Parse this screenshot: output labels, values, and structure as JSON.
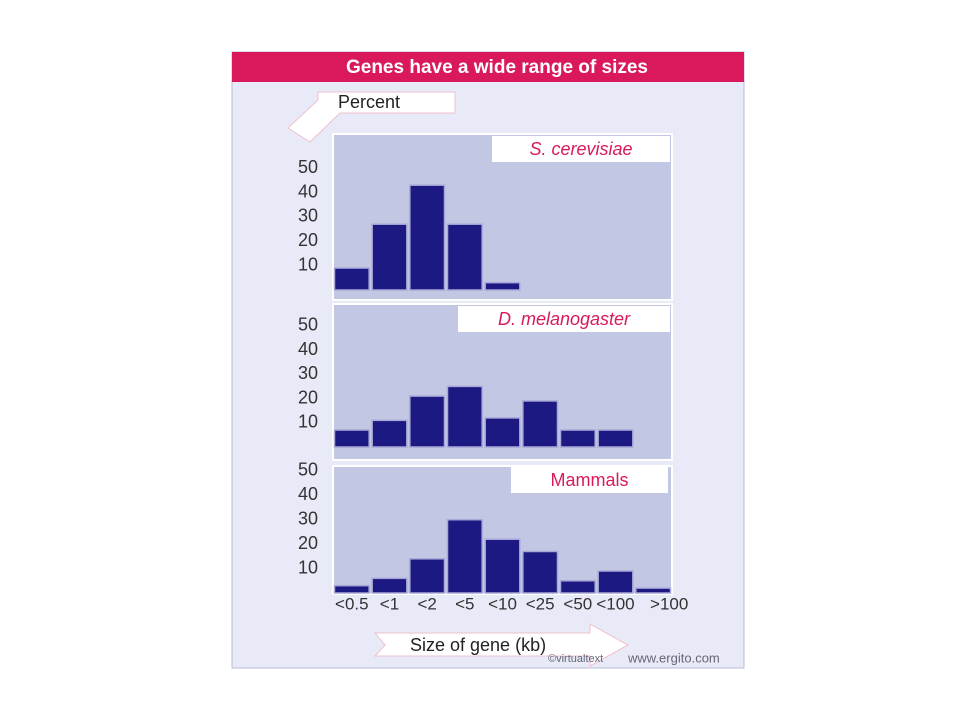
{
  "header": {
    "title": "Genes have a wide range of sizes"
  },
  "footer": {
    "credit": "©virtualtext",
    "site": "www.ergito.com"
  },
  "chart_data": {
    "type": "bar",
    "y_label": "Percent",
    "x_label": "Size of gene (kb)",
    "color": "#1c1a82",
    "categories": [
      "<0.5",
      "<1",
      "<2",
      "<5",
      "<10",
      "<25",
      "<50",
      "<100",
      ">100"
    ],
    "panels": [
      {
        "title": "S. cerevisiae",
        "values": [
          9,
          27,
          43,
          27,
          3,
          0,
          0,
          0,
          0
        ],
        "ylim": [
          0,
          64
        ],
        "yticks": [
          10,
          20,
          30,
          40,
          50
        ]
      },
      {
        "title": "D. melanogaster",
        "values": [
          7,
          11,
          21,
          25,
          12,
          19,
          7,
          7,
          0
        ],
        "ylim": [
          0,
          59
        ],
        "yticks": [
          10,
          20,
          30,
          40,
          50
        ]
      },
      {
        "title": "Mammals",
        "values": [
          3,
          6,
          14,
          30,
          22,
          17,
          5,
          9,
          2
        ],
        "ylim": [
          0,
          52
        ],
        "yticks": [
          10,
          20,
          30,
          40,
          50
        ]
      }
    ]
  }
}
